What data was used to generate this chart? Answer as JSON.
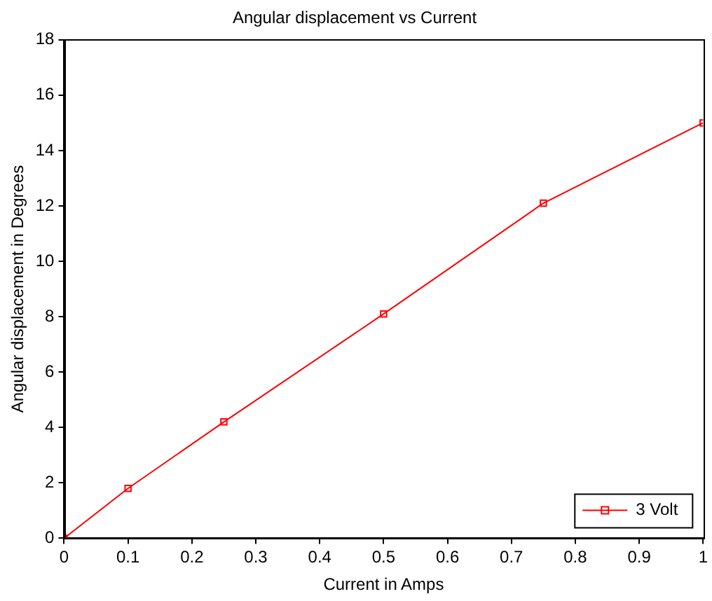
{
  "chart_data": {
    "type": "line",
    "title": "Angular displacement vs Current",
    "xlabel": "Current in Amps",
    "ylabel": "Angular displacement in Degrees",
    "x": [
      0,
      0.1,
      0.25,
      0.5,
      0.75,
      1
    ],
    "series": [
      {
        "name": "3 Volt",
        "color": "#ff0000",
        "values": [
          0,
          1.8,
          4.2,
          8.1,
          12.1,
          15
        ]
      }
    ],
    "xlim": [
      0,
      1
    ],
    "xticks": [
      0,
      0.1,
      0.2,
      0.3,
      0.4,
      0.5,
      0.6,
      0.7,
      0.8,
      0.9,
      1
    ],
    "ylim": [
      0,
      18
    ],
    "yticks": [
      0,
      2,
      4,
      6,
      8,
      10,
      12,
      14,
      16,
      18
    ],
    "legend": "bottom right",
    "marker": "square",
    "line_style": "solid"
  }
}
